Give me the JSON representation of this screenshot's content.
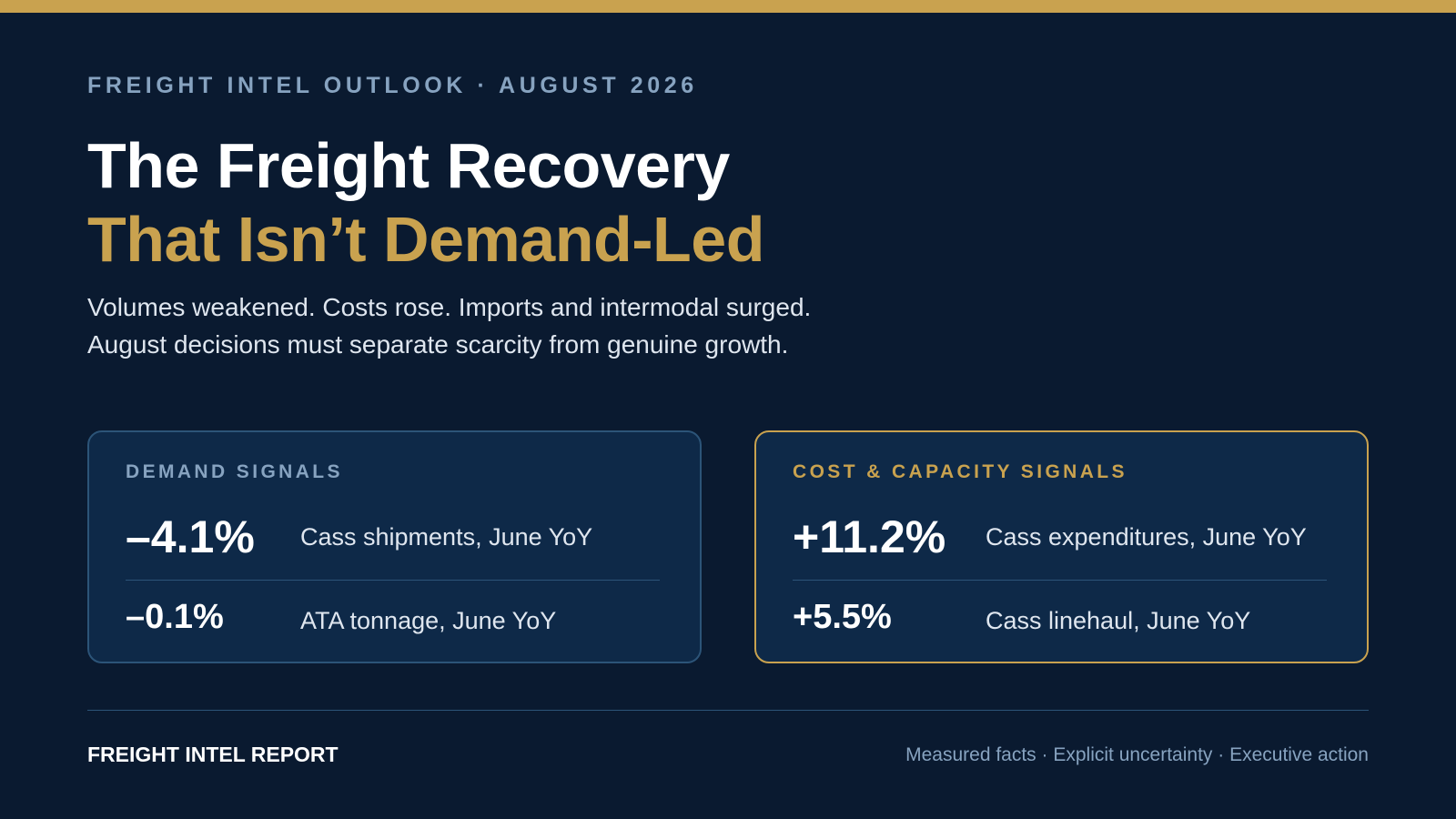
{
  "colors": {
    "background": "#0a1a30",
    "accent_gold": "#c9a24f",
    "panel_fill": "#0e2948",
    "muted_blue": "#87a3c0"
  },
  "header": {
    "eyebrow": "FREIGHT INTEL OUTLOOK · AUGUST 2026",
    "title_line1": "The Freight Recovery",
    "title_line2": "That Isn’t Demand-Led",
    "subtitle_line1": "Volumes weakened. Costs rose. Imports and intermodal surged.",
    "subtitle_line2": "August decisions must separate scarcity from genuine growth."
  },
  "panels": [
    {
      "heading": "DEMAND SIGNALS",
      "stats": [
        {
          "value": "–4.1%",
          "label": "Cass shipments, June YoY"
        },
        {
          "value": "–0.1%",
          "label": "ATA tonnage, June YoY"
        }
      ]
    },
    {
      "heading": "COST & CAPACITY SIGNALS",
      "stats": [
        {
          "value": "+11.2%",
          "label": "Cass expenditures, June YoY"
        },
        {
          "value": "+5.5%",
          "label": "Cass linehaul, June YoY"
        }
      ]
    }
  ],
  "footer": {
    "brand": "FREIGHT INTEL REPORT",
    "tagline": "Measured facts · Explicit uncertainty · Executive action"
  }
}
